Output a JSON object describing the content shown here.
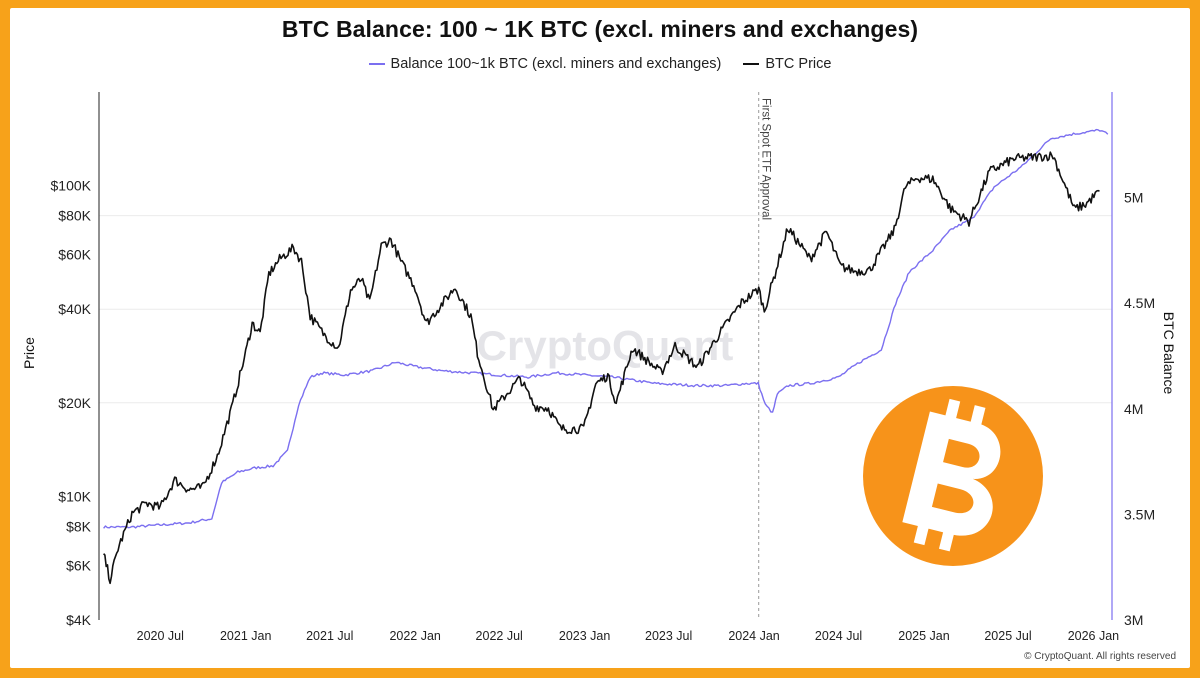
{
  "chart_data": {
    "type": "line",
    "title": "BTC Balance: 100 ~ 1K BTC (excl. miners and exchanges)",
    "legend": {
      "placement": "top-center"
    },
    "series": [
      {
        "name": "Balance 100~1k BTC (excl. miners and exchanges)",
        "axis": "right",
        "color": "#7b6ff0",
        "points": [
          [
            "2020-03-01",
            3.44
          ],
          [
            "2020-05-01",
            3.44
          ],
          [
            "2020-07-01",
            3.45
          ],
          [
            "2020-09-01",
            3.46
          ],
          [
            "2020-10-20",
            3.48
          ],
          [
            "2020-11-10",
            3.65
          ],
          [
            "2020-12-15",
            3.7
          ],
          [
            "2021-01-20",
            3.72
          ],
          [
            "2021-03-01",
            3.73
          ],
          [
            "2021-04-01",
            3.8
          ],
          [
            "2021-04-25",
            4.02
          ],
          [
            "2021-05-20",
            4.15
          ],
          [
            "2021-06-15",
            4.17
          ],
          [
            "2021-08-01",
            4.16
          ],
          [
            "2021-10-01",
            4.18
          ],
          [
            "2021-11-20",
            4.22
          ],
          [
            "2022-01-01",
            4.2
          ],
          [
            "2022-03-01",
            4.18
          ],
          [
            "2022-05-01",
            4.17
          ],
          [
            "2022-07-01",
            4.16
          ],
          [
            "2022-09-01",
            4.15
          ],
          [
            "2022-11-01",
            4.17
          ],
          [
            "2023-01-01",
            4.16
          ],
          [
            "2023-03-01",
            4.15
          ],
          [
            "2023-06-01",
            4.12
          ],
          [
            "2023-09-01",
            4.11
          ],
          [
            "2023-11-01",
            4.11
          ],
          [
            "2023-12-15",
            4.12
          ],
          [
            "2024-01-10",
            4.12
          ],
          [
            "2024-01-25",
            4.02
          ],
          [
            "2024-02-10",
            3.98
          ],
          [
            "2024-02-20",
            4.07
          ],
          [
            "2024-03-15",
            4.11
          ],
          [
            "2024-05-01",
            4.12
          ],
          [
            "2024-07-01",
            4.15
          ],
          [
            "2024-08-15",
            4.22
          ],
          [
            "2024-10-01",
            4.28
          ],
          [
            "2024-11-01",
            4.5
          ],
          [
            "2024-12-01",
            4.65
          ],
          [
            "2025-01-20",
            4.75
          ],
          [
            "2025-03-01",
            4.85
          ],
          [
            "2025-04-15",
            4.9
          ],
          [
            "2025-06-01",
            5.05
          ],
          [
            "2025-08-01",
            5.15
          ],
          [
            "2025-10-01",
            5.28
          ],
          [
            "2025-11-15",
            5.3
          ],
          [
            "2026-01-15",
            5.32
          ],
          [
            "2026-02-01",
            5.3
          ]
        ]
      },
      {
        "name": "BTC Price",
        "axis": "left",
        "color": "#111111",
        "points": [
          [
            "2020-03-01",
            6500
          ],
          [
            "2020-03-15",
            5400
          ],
          [
            "2020-04-01",
            6800
          ],
          [
            "2020-05-01",
            8800
          ],
          [
            "2020-06-01",
            9500
          ],
          [
            "2020-07-01",
            9200
          ],
          [
            "2020-08-01",
            11300
          ],
          [
            "2020-09-01",
            10500
          ],
          [
            "2020-10-01",
            10700
          ],
          [
            "2020-11-01",
            13500
          ],
          [
            "2020-12-01",
            19000
          ],
          [
            "2021-01-01",
            29000
          ],
          [
            "2021-01-15",
            36000
          ],
          [
            "2021-02-01",
            33500
          ],
          [
            "2021-02-20",
            52000
          ],
          [
            "2021-03-15",
            58000
          ],
          [
            "2021-04-14",
            63000
          ],
          [
            "2021-05-01",
            57000
          ],
          [
            "2021-05-20",
            38000
          ],
          [
            "2021-06-20",
            33000
          ],
          [
            "2021-07-20",
            30000
          ],
          [
            "2021-08-15",
            46000
          ],
          [
            "2021-09-07",
            50000
          ],
          [
            "2021-09-25",
            42000
          ],
          [
            "2021-10-20",
            64000
          ],
          [
            "2021-11-10",
            67000
          ],
          [
            "2021-12-01",
            57000
          ],
          [
            "2022-01-01",
            47000
          ],
          [
            "2022-01-25",
            36000
          ],
          [
            "2022-03-28",
            47000
          ],
          [
            "2022-05-01",
            38000
          ],
          [
            "2022-05-15",
            29000
          ],
          [
            "2022-06-18",
            19000
          ],
          [
            "2022-08-15",
            24000
          ],
          [
            "2022-09-15",
            19500
          ],
          [
            "2022-10-15",
            19200
          ],
          [
            "2022-11-10",
            16500
          ],
          [
            "2022-12-30",
            16500
          ],
          [
            "2023-01-25",
            23000
          ],
          [
            "2023-02-20",
            24500
          ],
          [
            "2023-03-10",
            20000
          ],
          [
            "2023-04-14",
            30000
          ],
          [
            "2023-06-15",
            25000
          ],
          [
            "2023-07-15",
            30500
          ],
          [
            "2023-09-01",
            26000
          ],
          [
            "2023-10-25",
            34500
          ],
          [
            "2023-12-05",
            42000
          ],
          [
            "2024-01-11",
            46500
          ],
          [
            "2024-01-23",
            39500
          ],
          [
            "2024-02-15",
            52000
          ],
          [
            "2024-03-14",
            73000
          ],
          [
            "2024-05-01",
            58000
          ],
          [
            "2024-06-05",
            71000
          ],
          [
            "2024-07-05",
            55000
          ],
          [
            "2024-08-05",
            53000
          ],
          [
            "2024-09-06",
            53500
          ],
          [
            "2024-10-29",
            72000
          ],
          [
            "2024-11-22",
            99000
          ],
          [
            "2024-12-17",
            106000
          ],
          [
            "2025-01-20",
            105000
          ],
          [
            "2025-02-28",
            84000
          ],
          [
            "2025-04-08",
            76500
          ],
          [
            "2025-05-22",
            111000
          ],
          [
            "2025-07-14",
            122000
          ],
          [
            "2025-08-14",
            123000
          ],
          [
            "2025-10-06",
            125000
          ],
          [
            "2025-11-21",
            84000
          ],
          [
            "2025-12-15",
            87000
          ],
          [
            "2026-01-14",
            96000
          ]
        ]
      }
    ],
    "events": [
      {
        "date": "2024-01-11",
        "label": "First Spot ETF Approval"
      }
    ],
    "xaxis": {
      "range": [
        "2020-02-20",
        "2026-02-10"
      ],
      "ticks": [
        {
          "date": "2020-07-01",
          "label": "2020 Jul"
        },
        {
          "date": "2021-01-01",
          "label": "2021 Jan"
        },
        {
          "date": "2021-07-01",
          "label": "2021 Jul"
        },
        {
          "date": "2022-01-01",
          "label": "2022 Jan"
        },
        {
          "date": "2022-07-01",
          "label": "2022 Jul"
        },
        {
          "date": "2023-01-01",
          "label": "2023 Jan"
        },
        {
          "date": "2023-07-01",
          "label": "2023 Jul"
        },
        {
          "date": "2024-01-01",
          "label": "2024 Jan"
        },
        {
          "date": "2024-07-01",
          "label": "2024 Jul"
        },
        {
          "date": "2025-01-01",
          "label": "2025 Jan"
        },
        {
          "date": "2025-07-01",
          "label": "2025 Jul"
        },
        {
          "date": "2026-01-01",
          "label": "2026 Jan"
        }
      ]
    },
    "yaxis_left": {
      "label": "Price",
      "scale": "log",
      "range": [
        4000,
        200000
      ],
      "ticks": [
        {
          "value": 4000,
          "label": "$4K"
        },
        {
          "value": 6000,
          "label": "$6K"
        },
        {
          "value": 8000,
          "label": "$8K"
        },
        {
          "value": 10000,
          "label": "$10K"
        },
        {
          "value": 20000,
          "label": "$20K"
        },
        {
          "value": 40000,
          "label": "$40K"
        },
        {
          "value": 60000,
          "label": "$60K"
        },
        {
          "value": 80000,
          "label": "$80K"
        },
        {
          "value": 100000,
          "label": "$100K"
        }
      ]
    },
    "yaxis_right": {
      "label": "BTC Balance",
      "scale": "linear",
      "unit": "M",
      "range": [
        3.0,
        5.5
      ],
      "ticks": [
        {
          "value": 3.0,
          "label": "3M"
        },
        {
          "value": 3.5,
          "label": "3.5M"
        },
        {
          "value": 4.0,
          "label": "4M"
        },
        {
          "value": 4.5,
          "label": "4.5M"
        },
        {
          "value": 5.0,
          "label": "5M"
        }
      ]
    },
    "gridlines": {
      "horizontal": true,
      "values": [
        20000,
        40000,
        80000
      ]
    }
  },
  "watermark": "CryptoQuant",
  "logo": {
    "icon": "bitcoin-icon",
    "color": "#f7931a"
  },
  "footer": "© CryptoQuant. All rights reserved",
  "colors": {
    "border": "#f7a21a",
    "balance": "#7b6ff0",
    "price": "#111111"
  }
}
